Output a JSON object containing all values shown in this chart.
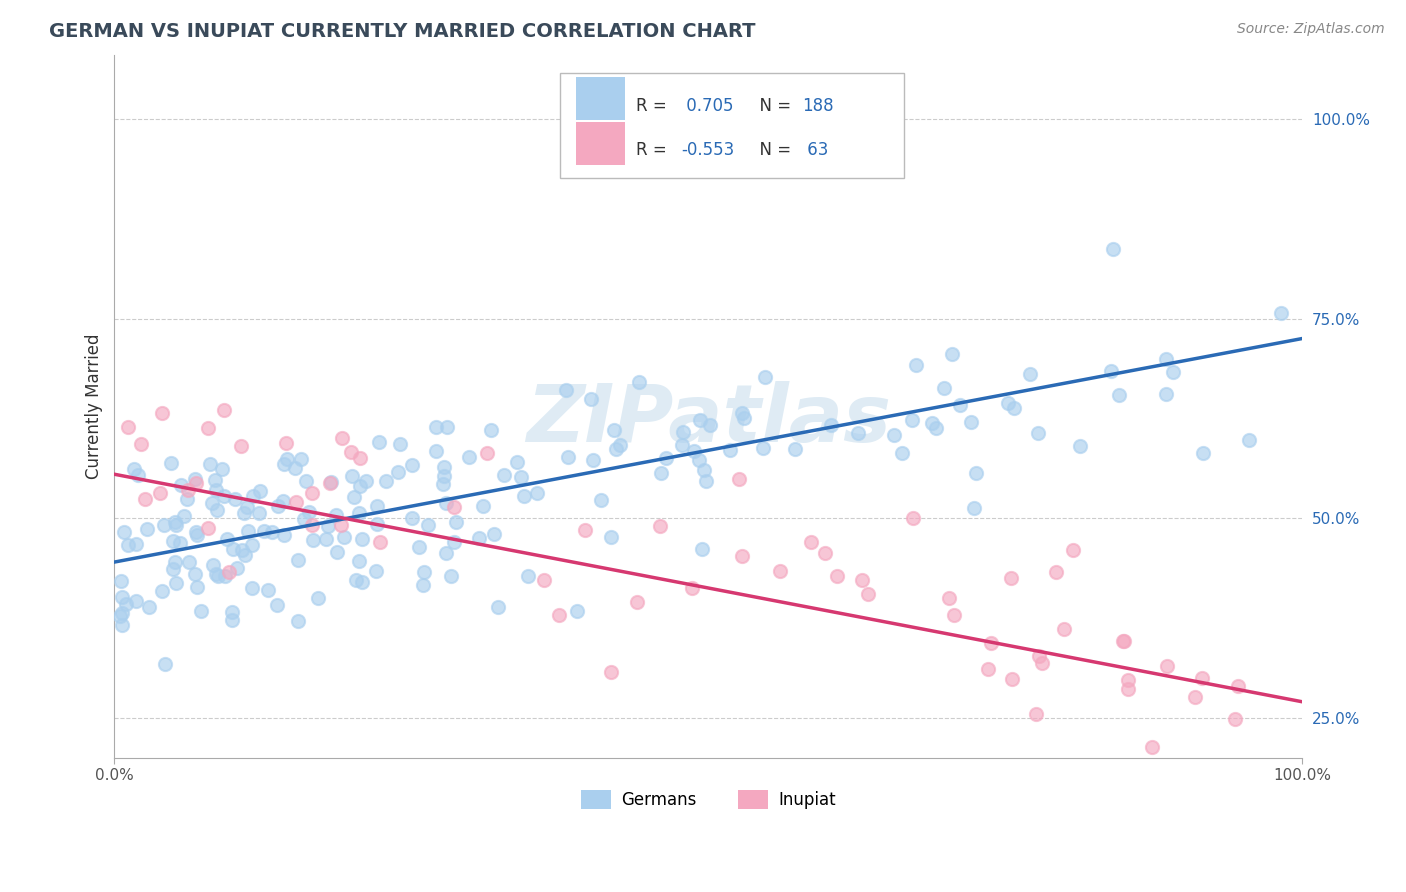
{
  "title": "GERMAN VS INUPIAT CURRENTLY MARRIED CORRELATION CHART",
  "source_text": "Source: ZipAtlas.com",
  "ylabel": "Currently Married",
  "xlim": [
    0.0,
    1.0
  ],
  "ylim": [
    0.2,
    1.08
  ],
  "y_tick_positions": [
    0.25,
    0.5,
    0.75,
    1.0
  ],
  "y_tick_labels": [
    "25.0%",
    "50.0%",
    "75.0%",
    "100.0%"
  ],
  "x_tick_labels": [
    "0.0%",
    "100.0%"
  ],
  "german_color": "#aacfee",
  "inupiat_color": "#f4a8c0",
  "german_line_color": "#2a6ab5",
  "inupiat_line_color": "#d63870",
  "R_german": 0.705,
  "N_german": 188,
  "R_inupiat": -0.553,
  "N_inupiat": 63,
  "watermark": "ZIPatlas",
  "german_intercept": 0.445,
  "german_slope": 0.28,
  "inupiat_intercept": 0.555,
  "inupiat_slope": -0.285,
  "german_noise_std": 0.06,
  "inupiat_noise_std": 0.075,
  "legend_R_color": "#2a6ab5",
  "legend_N_color": "#2a6ab5",
  "tick_color": "#2a6ab5"
}
